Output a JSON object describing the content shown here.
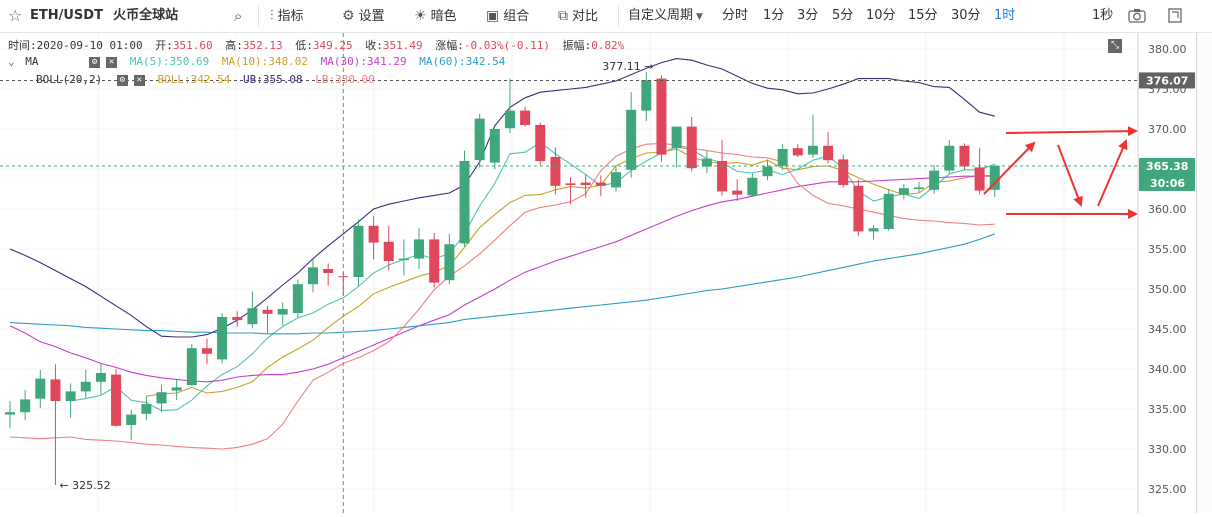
{
  "toolbar": {
    "star_icon": "star-outline",
    "symbol": "ETH/USDT",
    "exchange": "火币全球站",
    "search_icon": "magnifier",
    "indicators_label": "指标",
    "settings_label": "设置",
    "theme_label": "暗色",
    "combo_label": "组合",
    "compare_label": "对比",
    "custom_period_label": "自定义周期",
    "periods": [
      "分时",
      "1分",
      "3分",
      "5分",
      "10分",
      "15分",
      "30分",
      "1时"
    ],
    "active_period": "1时",
    "refresh_label": "1秒"
  },
  "info": {
    "time_label": "时间:",
    "time": "2020-09-10 01:00",
    "open_label": "开:",
    "open": "351.60",
    "high_label": "高:",
    "high": "352.13",
    "low_label": "低:",
    "low": "349.25",
    "close_label": "收:",
    "close": "351.49",
    "change_label": "涨幅:",
    "change": "-0.03%(-0.11)",
    "amp_label": "振幅:",
    "amp": "0.82%"
  },
  "ma_legend": {
    "name": "MA",
    "items": [
      {
        "label": "MA(5):350.69",
        "color": "#4fc3b8"
      },
      {
        "label": "MA(10):348.02",
        "color": "#c9a227"
      },
      {
        "label": "MA(30):341.29",
        "color": "#c53fcf"
      },
      {
        "label": "MA(60):342.54",
        "color": "#2a9fc9"
      }
    ]
  },
  "boll_legend": {
    "name": "BOLL(20,2)",
    "items": [
      {
        "label": "BOLL:342.54",
        "color": "#c9a227"
      },
      {
        "label": "UB:355.08",
        "color": "#3d2d7a"
      },
      {
        "label": "LB:330.00",
        "color": "#f08080"
      }
    ]
  },
  "price_tags": {
    "current": "376.07",
    "last": "365.38",
    "countdown": "30:06"
  },
  "colors": {
    "up": "#3fa77b",
    "down": "#e0475b",
    "arrow": "#ee3333",
    "active": "#1e7be8"
  },
  "chart_data": {
    "type": "candlestick",
    "ylim": [
      322,
      382
    ],
    "y_ticks": [
      325,
      330,
      335,
      340,
      345,
      350,
      355,
      360,
      365,
      370,
      375,
      380
    ],
    "y_tick_labels": [
      "325.00",
      "330.00",
      "335.00",
      "340.00",
      "345.00",
      "350.00",
      "355.00",
      "360.00",
      "365.00",
      "370.00",
      "375.00",
      "380.00"
    ],
    "candles": [
      {
        "o": 334.3,
        "h": 336.0,
        "l": 332.6,
        "c": 334.6
      },
      {
        "o": 334.6,
        "h": 337.4,
        "l": 333.6,
        "c": 336.2
      },
      {
        "o": 336.3,
        "h": 339.9,
        "l": 335.1,
        "c": 338.8
      },
      {
        "o": 338.7,
        "h": 340.6,
        "l": 325.5,
        "c": 336.0
      },
      {
        "o": 336.0,
        "h": 338.2,
        "l": 333.9,
        "c": 337.2
      },
      {
        "o": 337.2,
        "h": 339.9,
        "l": 336.4,
        "c": 338.4
      },
      {
        "o": 338.4,
        "h": 340.7,
        "l": 336.8,
        "c": 339.5
      },
      {
        "o": 339.3,
        "h": 340.0,
        "l": 332.8,
        "c": 332.9
      },
      {
        "o": 333.0,
        "h": 334.9,
        "l": 331.1,
        "c": 334.3
      },
      {
        "o": 334.4,
        "h": 336.6,
        "l": 333.6,
        "c": 335.6
      },
      {
        "o": 335.7,
        "h": 338.0,
        "l": 334.6,
        "c": 337.1
      },
      {
        "o": 337.3,
        "h": 338.6,
        "l": 336.1,
        "c": 337.7
      },
      {
        "o": 338.0,
        "h": 343.1,
        "l": 337.9,
        "c": 342.6
      },
      {
        "o": 342.6,
        "h": 343.8,
        "l": 340.6,
        "c": 341.9
      },
      {
        "o": 341.2,
        "h": 347.0,
        "l": 340.7,
        "c": 346.5
      },
      {
        "o": 346.5,
        "h": 347.2,
        "l": 345.3,
        "c": 346.1
      },
      {
        "o": 345.6,
        "h": 349.7,
        "l": 345.1,
        "c": 347.6
      },
      {
        "o": 347.4,
        "h": 347.9,
        "l": 344.5,
        "c": 346.9
      },
      {
        "o": 346.8,
        "h": 348.3,
        "l": 345.4,
        "c": 347.5
      },
      {
        "o": 347.0,
        "h": 351.2,
        "l": 346.4,
        "c": 350.6
      },
      {
        "o": 350.6,
        "h": 353.7,
        "l": 349.6,
        "c": 352.7
      },
      {
        "o": 352.5,
        "h": 353.2,
        "l": 350.4,
        "c": 352.0
      },
      {
        "o": 351.6,
        "h": 352.1,
        "l": 349.2,
        "c": 351.5
      },
      {
        "o": 351.5,
        "h": 358.7,
        "l": 350.4,
        "c": 357.9
      },
      {
        "o": 357.9,
        "h": 359.1,
        "l": 353.7,
        "c": 355.8
      },
      {
        "o": 355.9,
        "h": 357.9,
        "l": 352.3,
        "c": 353.5
      },
      {
        "o": 353.6,
        "h": 356.2,
        "l": 351.7,
        "c": 353.8
      },
      {
        "o": 353.8,
        "h": 357.6,
        "l": 352.5,
        "c": 356.2
      },
      {
        "o": 356.2,
        "h": 357.0,
        "l": 350.2,
        "c": 350.8
      },
      {
        "o": 351.1,
        "h": 356.9,
        "l": 350.6,
        "c": 355.6
      },
      {
        "o": 355.7,
        "h": 367.3,
        "l": 355.3,
        "c": 366.0
      },
      {
        "o": 366.1,
        "h": 371.9,
        "l": 365.2,
        "c": 371.3
      },
      {
        "o": 365.8,
        "h": 369.7,
        "l": 365.0,
        "c": 370.0
      },
      {
        "o": 370.1,
        "h": 376.3,
        "l": 369.5,
        "c": 372.3
      },
      {
        "o": 372.3,
        "h": 372.8,
        "l": 370.3,
        "c": 370.5
      },
      {
        "o": 370.5,
        "h": 370.8,
        "l": 365.4,
        "c": 366.0
      },
      {
        "o": 366.5,
        "h": 367.7,
        "l": 361.8,
        "c": 362.9
      },
      {
        "o": 363.2,
        "h": 364.0,
        "l": 360.6,
        "c": 363.0
      },
      {
        "o": 363.3,
        "h": 364.3,
        "l": 361.4,
        "c": 363.0
      },
      {
        "o": 363.3,
        "h": 364.2,
        "l": 361.6,
        "c": 362.9
      },
      {
        "o": 362.7,
        "h": 365.4,
        "l": 362.2,
        "c": 364.6
      },
      {
        "o": 364.9,
        "h": 374.6,
        "l": 363.9,
        "c": 372.4
      },
      {
        "o": 372.3,
        "h": 377.1,
        "l": 371.0,
        "c": 376.1
      },
      {
        "o": 376.3,
        "h": 376.7,
        "l": 365.9,
        "c": 366.8
      },
      {
        "o": 367.6,
        "h": 369.9,
        "l": 365.2,
        "c": 370.3
      },
      {
        "o": 370.3,
        "h": 371.5,
        "l": 364.7,
        "c": 365.1
      },
      {
        "o": 365.3,
        "h": 367.3,
        "l": 364.5,
        "c": 366.3
      },
      {
        "o": 366.0,
        "h": 368.6,
        "l": 361.7,
        "c": 362.2
      },
      {
        "o": 362.3,
        "h": 363.7,
        "l": 361.0,
        "c": 361.8
      },
      {
        "o": 361.7,
        "h": 364.5,
        "l": 361.5,
        "c": 363.9
      },
      {
        "o": 364.1,
        "h": 366.2,
        "l": 363.6,
        "c": 365.3
      },
      {
        "o": 365.4,
        "h": 368.1,
        "l": 364.9,
        "c": 367.5
      },
      {
        "o": 367.6,
        "h": 368.1,
        "l": 366.5,
        "c": 366.7
      },
      {
        "o": 366.8,
        "h": 371.8,
        "l": 366.4,
        "c": 367.9
      },
      {
        "o": 367.9,
        "h": 369.6,
        "l": 365.7,
        "c": 366.1
      },
      {
        "o": 366.2,
        "h": 366.8,
        "l": 362.7,
        "c": 363.0
      },
      {
        "o": 362.9,
        "h": 363.7,
        "l": 356.6,
        "c": 357.2
      },
      {
        "o": 357.2,
        "h": 358.0,
        "l": 356.2,
        "c": 357.6
      },
      {
        "o": 357.5,
        "h": 362.5,
        "l": 357.3,
        "c": 361.9
      },
      {
        "o": 361.8,
        "h": 363.1,
        "l": 361.2,
        "c": 362.6
      },
      {
        "o": 362.5,
        "h": 363.4,
        "l": 362.0,
        "c": 362.7
      },
      {
        "o": 362.4,
        "h": 365.5,
        "l": 361.9,
        "c": 364.8
      },
      {
        "o": 364.8,
        "h": 368.6,
        "l": 364.4,
        "c": 367.9
      },
      {
        "o": 367.9,
        "h": 368.2,
        "l": 364.9,
        "c": 365.3
      },
      {
        "o": 365.2,
        "h": 367.6,
        "l": 361.8,
        "c": 362.3
      },
      {
        "o": 362.4,
        "h": 365.6,
        "l": 361.5,
        "c": 365.4
      }
    ],
    "lines": [
      {
        "name": "MA5",
        "color": "#4fc3b8",
        "values": [
          null,
          null,
          null,
          null,
          336.0,
          336.3,
          336.7,
          337.8,
          336.1,
          335.8,
          334.8,
          334.9,
          336.1,
          337.9,
          339.3,
          340.3,
          341.9,
          343.9,
          345.3,
          346.4,
          347.0,
          348.1,
          348.9,
          350.3,
          352.0,
          353.0,
          353.7,
          354.3,
          353.8,
          354.4,
          356.9,
          360.4,
          363.2,
          366.9,
          367.1,
          368.3,
          366.9,
          365.6,
          364.3,
          362.9,
          363.3,
          364.8,
          366.0,
          367.0,
          367.8,
          367.4,
          366.3,
          365.8,
          364.7,
          364.5,
          364.9,
          364.3,
          365.0,
          366.1,
          366.6,
          365.1,
          362.2,
          361.0,
          361.5,
          361.9,
          361.3,
          362.8,
          364.4,
          364.9,
          364.9,
          365.6
        ]
      },
      {
        "name": "MA10",
        "color": "#c9a227",
        "values": [
          null,
          null,
          null,
          null,
          null,
          null,
          null,
          null,
          null,
          336.6,
          336.9,
          337.0,
          337.7,
          337.0,
          337.2,
          337.7,
          338.4,
          340.2,
          341.5,
          342.5,
          343.6,
          345.2,
          346.6,
          347.8,
          349.4,
          350.2,
          350.9,
          351.6,
          352.1,
          352.9,
          355.2,
          357.7,
          359.3,
          360.8,
          361.7,
          361.8,
          362.4,
          362.8,
          362.6,
          363.0,
          365.4,
          366.3,
          367.0,
          367.1,
          367.5,
          366.5,
          365.9,
          365.7,
          365.8,
          365.5,
          366.1,
          365.1,
          364.9,
          365.3,
          365.4,
          364.8,
          363.9,
          363.1,
          362.4,
          361.8,
          362.0,
          363.3,
          363.5,
          363.9,
          364.2,
          364.0
        ]
      },
      {
        "name": "MA30",
        "color": "#c53fcf",
        "values": [
          345.4,
          344.5,
          343.4,
          342.8,
          342.0,
          341.4,
          340.7,
          340.2,
          339.6,
          339.2,
          338.9,
          338.7,
          338.5,
          338.4,
          338.6,
          339.0,
          339.2,
          339.3,
          339.3,
          339.6,
          340.0,
          340.6,
          341.4,
          342.2,
          343.0,
          343.8,
          344.6,
          345.4,
          346.1,
          346.8,
          348.0,
          349.0,
          350.0,
          351.1,
          352.1,
          352.8,
          353.5,
          354.1,
          354.7,
          355.3,
          355.9,
          356.7,
          357.5,
          358.3,
          359.1,
          359.8,
          360.4,
          360.9,
          361.2,
          361.6,
          362.0,
          362.4,
          362.8,
          363.1,
          363.4,
          363.4,
          363.4,
          363.5,
          363.6,
          363.7,
          363.8,
          363.9,
          364.0,
          364.1,
          364.1,
          364.2
        ]
      },
      {
        "name": "MA60",
        "color": "#2a9fc9",
        "values": [
          345.8,
          345.7,
          345.6,
          345.5,
          345.4,
          345.2,
          345.1,
          345.0,
          344.9,
          344.8,
          344.8,
          344.7,
          344.6,
          344.6,
          344.5,
          344.5,
          344.5,
          344.4,
          344.4,
          344.4,
          344.5,
          344.5,
          344.6,
          344.7,
          344.8,
          345.0,
          345.2,
          345.4,
          345.6,
          345.8,
          346.2,
          346.4,
          346.6,
          346.8,
          347.0,
          347.2,
          347.4,
          347.6,
          347.8,
          348.0,
          348.2,
          348.4,
          348.6,
          348.9,
          349.2,
          349.5,
          349.8,
          350.0,
          350.3,
          350.6,
          350.9,
          351.2,
          351.5,
          351.9,
          352.3,
          352.7,
          353.1,
          353.5,
          353.8,
          354.1,
          354.4,
          354.8,
          355.2,
          355.6,
          356.2,
          356.9
        ]
      },
      {
        "name": "UB",
        "color": "#3d2d7a",
        "values": [
          355.0,
          354.2,
          353.3,
          352.3,
          351.3,
          350.3,
          349.1,
          347.9,
          346.7,
          345.3,
          344.1,
          344.0,
          344.0,
          344.3,
          345.1,
          346.1,
          347.4,
          348.9,
          350.5,
          352.0,
          353.8,
          355.4,
          356.9,
          358.4,
          360.0,
          360.6,
          361.0,
          361.4,
          361.7,
          362.0,
          363.0,
          365.9,
          370.4,
          372.7,
          373.9,
          374.6,
          374.8,
          375.0,
          375.2,
          375.6,
          376.0,
          376.8,
          377.6,
          378.3,
          378.8,
          378.6,
          378.0,
          377.5,
          376.6,
          375.7,
          375.1,
          374.9,
          374.4,
          374.5,
          375.0,
          375.6,
          376.3,
          376.3,
          376.3,
          376.0,
          375.8,
          375.3,
          375.2,
          373.7,
          372.1,
          371.6
        ]
      },
      {
        "name": "LB",
        "color": "#f08080",
        "values": [
          331.5,
          331.4,
          331.3,
          331.4,
          331.5,
          331.2,
          331.1,
          331.0,
          330.8,
          330.6,
          330.5,
          330.3,
          330.2,
          330.1,
          330.0,
          330.2,
          330.6,
          331.3,
          333.1,
          336.0,
          338.6,
          339.6,
          340.7,
          341.4,
          342.3,
          343.4,
          345.3,
          347.5,
          349.9,
          351.6,
          352.9,
          354.4,
          356.1,
          357.9,
          359.6,
          360.2,
          360.5,
          360.9,
          361.9,
          364.8,
          366.6,
          367.5,
          368.1,
          368.2,
          368.0,
          367.6,
          367.3,
          367.0,
          366.8,
          366.5,
          366.4,
          365.9,
          363.2,
          361.7,
          360.7,
          360.4,
          360.0,
          359.6,
          359.2,
          358.8,
          358.6,
          358.5,
          358.3,
          358.2,
          358.0,
          358.1
        ]
      }
    ],
    "low_marker": {
      "index": 3,
      "value": 325.52,
      "label": "325.52"
    },
    "high_marker": {
      "index": 42,
      "value": 377.11,
      "label": "377.11"
    },
    "current_price": 376.07,
    "last_price": 365.38,
    "crosshair_index": 22
  }
}
